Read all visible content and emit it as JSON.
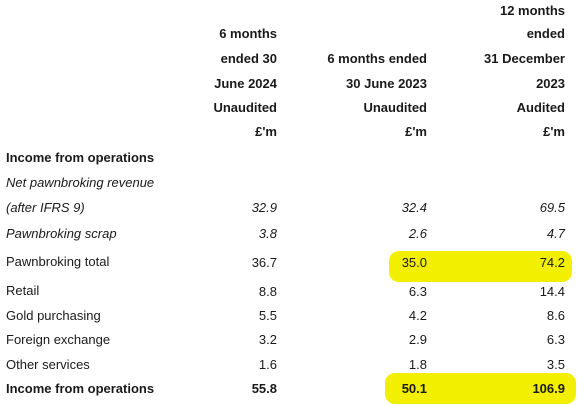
{
  "columns": [
    {
      "header_lines": [
        "6 months",
        "ended 30",
        "June 2024",
        "Unaudited",
        "£'m"
      ]
    },
    {
      "header_lines": [
        "6 months ended",
        "30 June 2023",
        "Unaudited",
        "£'m"
      ]
    },
    {
      "header_lines": [
        "12 months",
        "ended",
        "31 December",
        "2023",
        "Audited",
        "£'m"
      ]
    }
  ],
  "rows": [
    {
      "label": "Income from operations",
      "style": "bold-heading",
      "values": [
        "",
        "",
        ""
      ]
    },
    {
      "label": "Net pawnbroking revenue",
      "style": "italic",
      "values": [
        "",
        "",
        ""
      ]
    },
    {
      "label": "(after IFRS 9)",
      "style": "italic",
      "values": [
        "32.9",
        "32.4",
        "69.5"
      ]
    },
    {
      "label": "Pawnbroking scrap",
      "style": "italic",
      "values": [
        "3.8",
        "2.6",
        "4.7"
      ]
    },
    {
      "label": "Pawnbroking total",
      "style": "normal",
      "values": [
        "36.7",
        "35.0",
        "74.2"
      ],
      "highlight_columns": [
        1,
        2
      ]
    },
    {
      "label": "Retail",
      "style": "normal",
      "values": [
        "8.8",
        "6.3",
        "14.4"
      ]
    },
    {
      "label": "Gold purchasing",
      "style": "normal",
      "values": [
        "5.5",
        "4.2",
        "8.6"
      ]
    },
    {
      "label": "Foreign exchange",
      "style": "normal",
      "values": [
        "3.2",
        "2.9",
        "6.3"
      ]
    },
    {
      "label": "Other services",
      "style": "normal",
      "values": [
        "1.6",
        "1.8",
        "3.5"
      ]
    },
    {
      "label": "Income from operations",
      "style": "bold",
      "values": [
        "55.8",
        "50.1",
        "106.9"
      ],
      "highlight_columns": [
        1,
        2
      ]
    }
  ],
  "highlight_color": "#f2ef00"
}
